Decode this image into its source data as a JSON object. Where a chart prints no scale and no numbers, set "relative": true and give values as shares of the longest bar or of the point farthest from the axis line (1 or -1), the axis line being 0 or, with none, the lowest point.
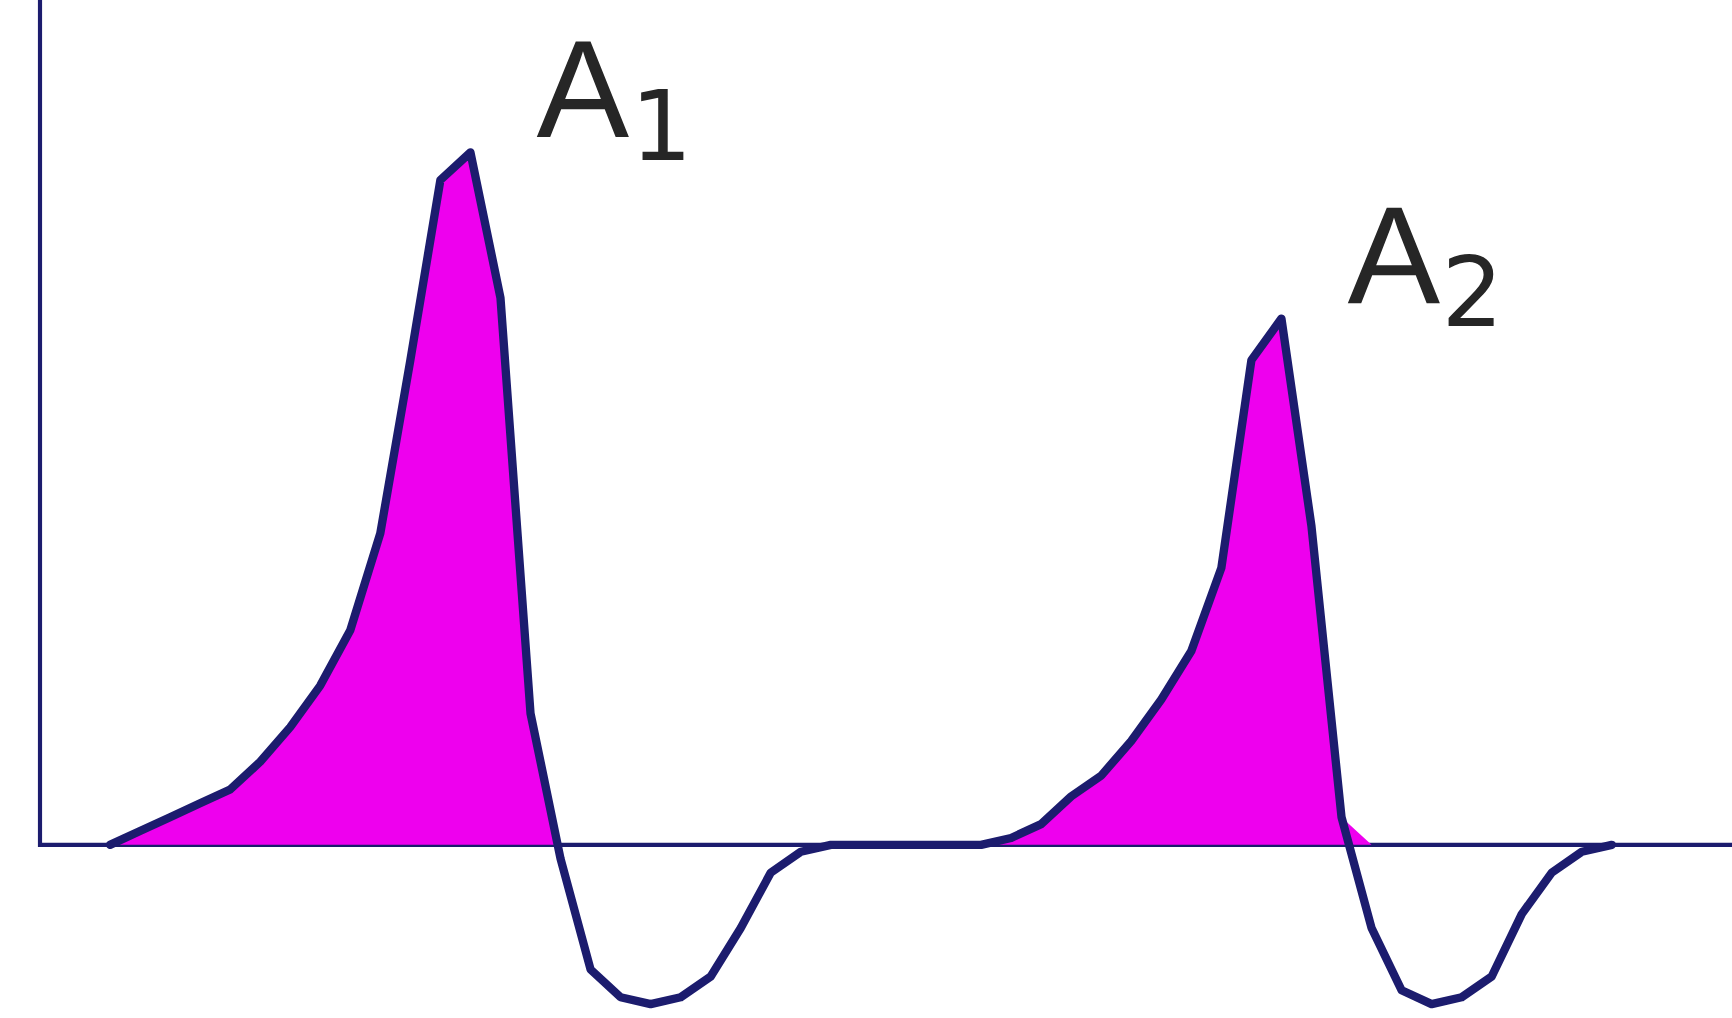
{
  "chart_data": {
    "type": "line",
    "relative": true,
    "categories": [
      null,
      null,
      null,
      null,
      null,
      null,
      null,
      null,
      null,
      null,
      null,
      null,
      null,
      null,
      null,
      null,
      null,
      null,
      null,
      null,
      null,
      null,
      null,
      null,
      null,
      null,
      null,
      null,
      null,
      null,
      null,
      null,
      null,
      null,
      null,
      null,
      null,
      null,
      null,
      null,
      null,
      null,
      null,
      null,
      null,
      null,
      null,
      null,
      null,
      null,
      null
    ],
    "annotations": [
      "A$_{1}$",
      "A$_{2}$"
    ],
    "ref_lines": [
      {
        "axis": "y",
        "value": 0,
        "color": "#1c1c6e"
      }
    ],
    "series": [
      {
        "color": "#1c1c6e",
        "values": [
          0,
          0.02,
          0.04,
          0.06,
          0.08,
          0.12,
          0.17,
          0.23,
          0.31,
          0.45,
          0.7,
          0.96,
          1.0,
          0.79,
          0.19,
          -0.02,
          -0.18,
          -0.22,
          -0.23,
          -0.22,
          -0.19,
          -0.12,
          -0.04,
          -0.01,
          0,
          0,
          0,
          0,
          0,
          0,
          0.01,
          0.03,
          0.07,
          0.1,
          0.15,
          0.21,
          0.28,
          0.4,
          0.7,
          0.76,
          0.46,
          0.04,
          -0.12,
          -0.21,
          -0.23,
          -0.22,
          -0.19,
          -0.1,
          -0.04,
          -0.01,
          0
        ]
      },
      {
        "type": "area",
        "color": "#ee00ee",
        "values": [
          0,
          0.02,
          0.04,
          0.06,
          0.08,
          0.12,
          0.17,
          0.23,
          0.31,
          0.45,
          0.7,
          0.96,
          1.0,
          0.79,
          0.19,
          0,
          null,
          null,
          null,
          null,
          null,
          null,
          null,
          null,
          null,
          null,
          null,
          null,
          null,
          0,
          0.01,
          0.03,
          0.07,
          0.1,
          0.15,
          0.21,
          0.28,
          0.4,
          0.7,
          0.76,
          0.46,
          0.04,
          0,
          null,
          null,
          null,
          null,
          null,
          null,
          null,
          null
        ]
      }
    ]
  }
}
